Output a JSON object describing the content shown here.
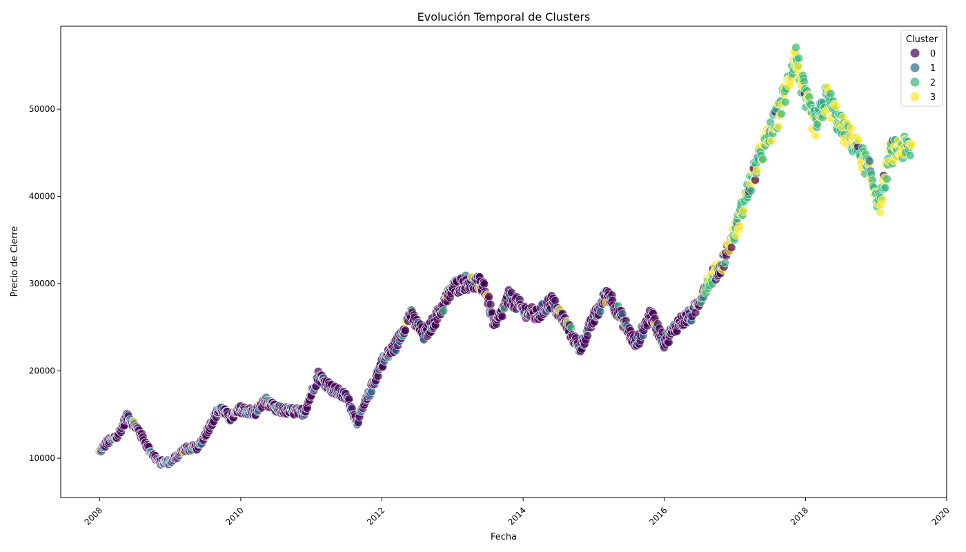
{
  "chart_data": {
    "type": "scatter",
    "title": "Evolución Temporal de Clusters",
    "xlabel": "Fecha",
    "ylabel": "Precio de Cierre",
    "xlim": [
      2007.45,
      2020.0
    ],
    "ylim": [
      5500,
      59500
    ],
    "x_ticks": [
      2008,
      2010,
      2012,
      2014,
      2016,
      2018,
      2020
    ],
    "x_tick_labels": [
      "2008",
      "2010",
      "2012",
      "2014",
      "2016",
      "2018",
      "2020"
    ],
    "y_ticks": [
      10000,
      20000,
      30000,
      40000,
      50000
    ],
    "y_tick_labels": [
      "10000",
      "20000",
      "30000",
      "40000",
      "50000"
    ],
    "grid": false,
    "legend": {
      "title": "Cluster",
      "placement": "top-right",
      "entries": [
        "0",
        "1",
        "2",
        "3"
      ]
    },
    "colors": {
      "0": "#440154",
      "1": "#31688e",
      "2": "#35b779",
      "3": "#fde725"
    },
    "series_trend": [
      [
        2008.0,
        10700
      ],
      [
        2008.1,
        11800
      ],
      [
        2008.25,
        12500
      ],
      [
        2008.4,
        14900
      ],
      [
        2008.55,
        13200
      ],
      [
        2008.7,
        11000
      ],
      [
        2008.85,
        9500
      ],
      [
        2009.0,
        9600
      ],
      [
        2009.2,
        11000
      ],
      [
        2009.4,
        11300
      ],
      [
        2009.55,
        13500
      ],
      [
        2009.7,
        15800
      ],
      [
        2009.85,
        14600
      ],
      [
        2010.0,
        15600
      ],
      [
        2010.2,
        15200
      ],
      [
        2010.35,
        16600
      ],
      [
        2010.5,
        15600
      ],
      [
        2010.7,
        15400
      ],
      [
        2010.9,
        15300
      ],
      [
        2011.1,
        19500
      ],
      [
        2011.3,
        17900
      ],
      [
        2011.5,
        17000
      ],
      [
        2011.65,
        14200
      ],
      [
        2011.8,
        17000
      ],
      [
        2012.0,
        21000
      ],
      [
        2012.2,
        23000
      ],
      [
        2012.4,
        26500
      ],
      [
        2012.6,
        24000
      ],
      [
        2012.8,
        26500
      ],
      [
        2013.0,
        29500
      ],
      [
        2013.2,
        30200
      ],
      [
        2013.45,
        29800
      ],
      [
        2013.6,
        25000
      ],
      [
        2013.8,
        28500
      ],
      [
        2014.0,
        27000
      ],
      [
        2014.2,
        26300
      ],
      [
        2014.4,
        28000
      ],
      [
        2014.6,
        25500
      ],
      [
        2014.8,
        22500
      ],
      [
        2015.0,
        26000
      ],
      [
        2015.2,
        29000
      ],
      [
        2015.4,
        26000
      ],
      [
        2015.6,
        23000
      ],
      [
        2015.8,
        26500
      ],
      [
        2016.0,
        23300
      ],
      [
        2016.2,
        25500
      ],
      [
        2016.4,
        26500
      ],
      [
        2016.6,
        30000
      ],
      [
        2016.8,
        32000
      ],
      [
        2017.0,
        36000
      ],
      [
        2017.2,
        41000
      ],
      [
        2017.4,
        45500
      ],
      [
        2017.6,
        49000
      ],
      [
        2017.75,
        53000
      ],
      [
        2017.85,
        56500
      ],
      [
        2018.0,
        51000
      ],
      [
        2018.15,
        48000
      ],
      [
        2018.3,
        51500
      ],
      [
        2018.5,
        48000
      ],
      [
        2018.7,
        46000
      ],
      [
        2018.9,
        43000
      ],
      [
        2019.05,
        39000
      ],
      [
        2019.2,
        45000
      ],
      [
        2019.35,
        45500
      ],
      [
        2019.5,
        45500
      ]
    ],
    "cluster_periods": [
      {
        "end": 2012.0,
        "weights": [
          0.72,
          0.26,
          0.01,
          0.01
        ]
      },
      {
        "end": 2016.5,
        "weights": [
          0.82,
          0.08,
          0.06,
          0.04
        ]
      },
      {
        "end": 2017.0,
        "weights": [
          0.35,
          0.05,
          0.35,
          0.25
        ]
      },
      {
        "end": 2019.6,
        "weights": [
          0.04,
          0.02,
          0.6,
          0.34
        ]
      }
    ]
  }
}
